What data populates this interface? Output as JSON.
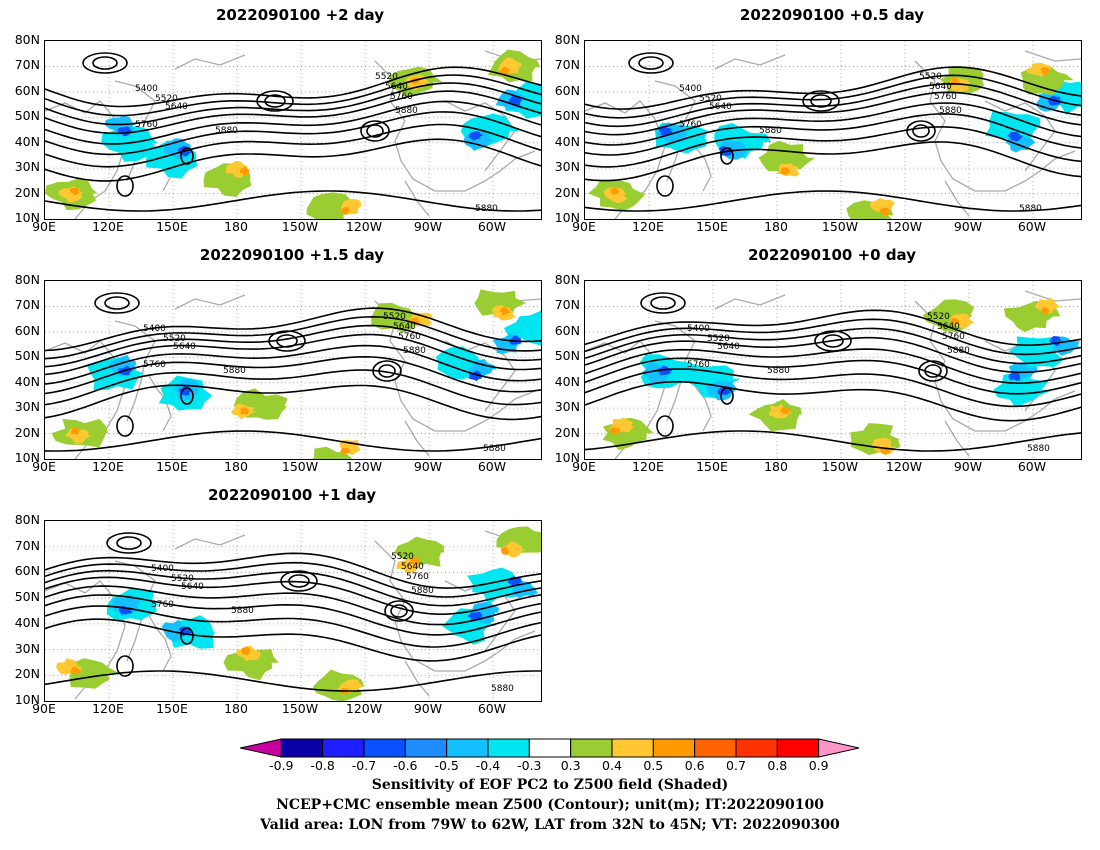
{
  "panels": [
    {
      "id": "p1",
      "title": "2022090100 +2 day"
    },
    {
      "id": "p2",
      "title": "2022090100 +0.5 day"
    },
    {
      "id": "p3",
      "title": "2022090100 +1.5 day"
    },
    {
      "id": "p4",
      "title": "2022090100 +0 day"
    },
    {
      "id": "p5",
      "title": "2022090100 +1 day"
    }
  ],
  "axes": {
    "lat_labels": [
      "80N",
      "70N",
      "60N",
      "50N",
      "40N",
      "30N",
      "20N",
      "10N"
    ],
    "lon_labels": [
      "90E",
      "120E",
      "150E",
      "180",
      "150W",
      "120W",
      "90W",
      "60W"
    ]
  },
  "contour_labels": [
    "5400",
    "5520",
    "5640",
    "5760",
    "5880"
  ],
  "colorbar": {
    "labels": [
      "-0.9",
      "-0.8",
      "-0.7",
      "-0.6",
      "-0.5",
      "-0.4",
      "-0.3",
      "0.3",
      "0.4",
      "0.5",
      "0.6",
      "0.7",
      "0.8",
      "0.9"
    ],
    "colors": [
      "#c8009c",
      "#0a00a8",
      "#1e1eff",
      "#0a50ff",
      "#1e8cff",
      "#14c0ff",
      "#00e6f0",
      "#ffffff",
      "#9acd32",
      "#ffc832",
      "#ff9b00",
      "#ff6400",
      "#ff3200",
      "#ff0000",
      "#ff96c8"
    ],
    "grid_color": "#aaaaaa"
  },
  "caption": {
    "line1": "Sensitivity of EOF PC2 to Z500 field (Shaded)",
    "line2": "NCEP+CMC ensemble mean Z500 (Contour); unit(m); IT:2022090100",
    "line3": "Valid area: LON from 79W to 62W, LAT from 32N to 45N; VT: 2022090300"
  }
}
